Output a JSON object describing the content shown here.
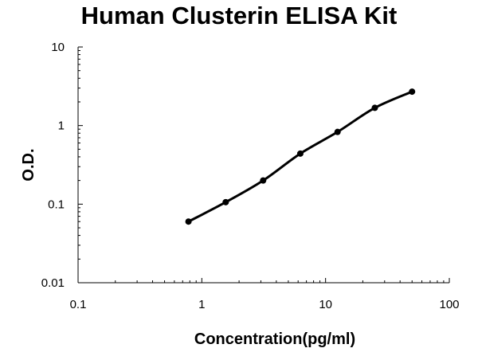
{
  "chart_data": {
    "type": "line",
    "title": "Human Clusterin ELISA Kit",
    "xlabel": "Concentration(pg/ml)",
    "ylabel": "O.D.",
    "x_scale": "log",
    "y_scale": "log",
    "xlim": [
      0.1,
      100
    ],
    "ylim": [
      0.01,
      10
    ],
    "x_ticks": [
      "0.1",
      "1",
      "10",
      "100"
    ],
    "y_ticks": [
      "0.01",
      "0.1",
      "1",
      "10"
    ],
    "grid": false,
    "legend": "none",
    "line_color": "#000000",
    "series": [
      {
        "x": [
          0.78,
          1.56,
          3.13,
          6.25,
          12.5,
          25,
          50
        ],
        "y": [
          0.06,
          0.106,
          0.2,
          0.44,
          0.83,
          1.68,
          2.7
        ]
      }
    ]
  }
}
